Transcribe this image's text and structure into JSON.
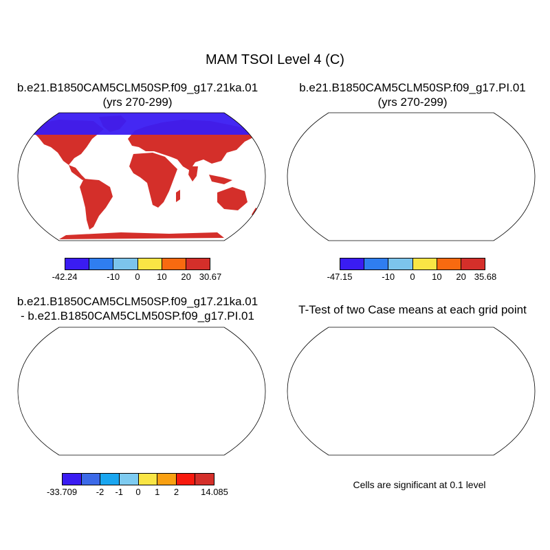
{
  "figure": {
    "title": "MAM TSOI Level 4 (C)"
  },
  "panels": [
    {
      "id": "tl",
      "title_line1": "b.e21.B1850CAM5CLM50SP.f09_g17.21ka.01",
      "title_line2": "(yrs 270-299)"
    },
    {
      "id": "tr",
      "title_line1": "b.e21.B1850CAM5CLM50SP.f09_g17.PI.01",
      "title_line2": "(yrs 270-299)"
    },
    {
      "id": "bl",
      "title_line1": "b.e21.B1850CAM5CLM50SP.f09_g17.21ka.01",
      "title_line2": "- b.e21.B1850CAM5CLM50SP.f09_g17.PI.01"
    },
    {
      "id": "br",
      "title_line1": "T-Test of two Case means at each grid point",
      "title_line2": ""
    }
  ],
  "colorbars": {
    "tl": {
      "colors": [
        "#3a1cf2",
        "#2f7ef0",
        "#7cc4ec",
        "#f9e545",
        "#f86a10",
        "#d42f2a"
      ],
      "labels": [
        "-42.24",
        "-10",
        "0",
        "10",
        "20",
        "30.67"
      ]
    },
    "tr": {
      "colors": [
        "#3a1cf2",
        "#2f7ef0",
        "#7cc4ec",
        "#f9e545",
        "#f86a10",
        "#d42f2a"
      ],
      "labels": [
        "-47.15",
        "-10",
        "0",
        "10",
        "20",
        "35.68"
      ]
    },
    "bl": {
      "colors": [
        "#3a1cf2",
        "#3c6ae8",
        "#1aa6f0",
        "#7ecbf0",
        "#f9e545",
        "#f9a012",
        "#f81a0e",
        "#d42f2a"
      ],
      "labels": [
        "-33.709",
        "-2",
        "-1",
        "0",
        "1",
        "2",
        "14.085"
      ]
    }
  },
  "significance_note": "Cells are significant at 0.1 level",
  "colors": {
    "warm": "#d42f2a",
    "orange": "#f86a10",
    "yellow": "#f9e545",
    "lightblue": "#7cc4ec",
    "blue": "#2f7ef0",
    "violet": "#3a1cf2",
    "sigred": "#f40a0a"
  }
}
